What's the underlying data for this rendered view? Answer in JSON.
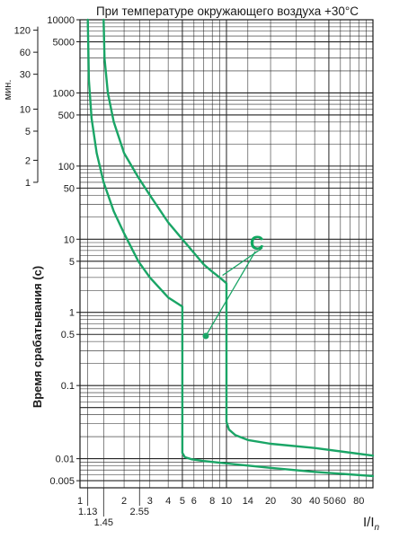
{
  "chart_data": {
    "type": "line",
    "title": "При температуре окружающего воздуха +30°C",
    "ylabel": "Время срабатывания (с)",
    "y2label": "мин.",
    "xlabel": "I/I",
    "xlabel_sub": "n",
    "x_scale": "log",
    "y_scale": "log",
    "xlim": [
      1,
      100
    ],
    "ylim": [
      0.004,
      10000
    ],
    "grid": true,
    "x_ticks": [
      {
        "value": 1,
        "label": "1",
        "row": 0
      },
      {
        "value": 1.13,
        "label": "1.13",
        "row": 1
      },
      {
        "value": 1.45,
        "label": "1.45",
        "row": 2
      },
      {
        "value": 2,
        "label": "2",
        "row": 0
      },
      {
        "value": 2.55,
        "label": "2.55",
        "row": 1
      },
      {
        "value": 3,
        "label": "3",
        "row": 0
      },
      {
        "value": 4,
        "label": "4",
        "row": 0
      },
      {
        "value": 5,
        "label": "5",
        "row": 0
      },
      {
        "value": 6,
        "label": "6",
        "row": 0
      },
      {
        "value": 8,
        "label": "8",
        "row": 0
      },
      {
        "value": 10,
        "label": "10",
        "row": 0
      },
      {
        "value": 14,
        "label": "14",
        "row": 0
      },
      {
        "value": 20,
        "label": "20",
        "row": 0
      },
      {
        "value": 30,
        "label": "30",
        "row": 0
      },
      {
        "value": 40,
        "label": "40",
        "row": 0
      },
      {
        "value": 50,
        "label": "50",
        "row": 0
      },
      {
        "value": 60,
        "label": "60",
        "row": 0
      },
      {
        "value": 80,
        "label": "80",
        "row": 0
      }
    ],
    "y_ticks": [
      {
        "value": 10000,
        "label": "10000"
      },
      {
        "value": 5000,
        "label": "5000"
      },
      {
        "value": 1000,
        "label": "1000"
      },
      {
        "value": 500,
        "label": "500"
      },
      {
        "value": 100,
        "label": "100"
      },
      {
        "value": 50,
        "label": "50"
      },
      {
        "value": 10,
        "label": "10"
      },
      {
        "value": 5,
        "label": "5"
      },
      {
        "value": 1,
        "label": "1"
      },
      {
        "value": 0.5,
        "label": "0.5"
      },
      {
        "value": 0.1,
        "label": "0.1"
      },
      {
        "value": 0.01,
        "label": "0.01"
      },
      {
        "value": 0.005,
        "label": "0.005"
      }
    ],
    "y_minute_ticks": [
      {
        "minutes": 120,
        "label": "120"
      },
      {
        "minutes": 60,
        "label": "60"
      },
      {
        "minutes": 30,
        "label": "30"
      },
      {
        "minutes": 10,
        "label": "10"
      },
      {
        "minutes": 5,
        "label": "5"
      },
      {
        "minutes": 2,
        "label": "2"
      },
      {
        "minutes": 1,
        "label": "1"
      }
    ],
    "curve_label": "C",
    "series": [
      {
        "name": "",
        "color": "#1aa566",
        "x": [
          1.13,
          1.15,
          1.2,
          1.3,
          1.45,
          1.7,
          2.0,
          2.5,
          3.0,
          4.0,
          5.0,
          5.0,
          5.0,
          5.2,
          5.8,
          7,
          9,
          12,
          20,
          40,
          100
        ],
        "y": [
          10000,
          1500,
          450,
          150,
          60,
          24,
          12,
          5.0,
          3.0,
          1.6,
          1.2,
          0.3,
          0.012,
          0.0105,
          0.0098,
          0.0093,
          0.0088,
          0.0083,
          0.0075,
          0.0066,
          0.0058
        ]
      },
      {
        "name": "",
        "color": "#1aa566",
        "x": [
          1.45,
          1.47,
          1.55,
          1.7,
          2.0,
          2.5,
          3.0,
          4.0,
          5.0,
          6.0,
          7.0,
          8.0,
          9.0,
          10.0,
          10.0,
          10.0,
          10.4,
          11.5,
          14,
          20,
          40,
          100
        ],
        "y": [
          10000,
          3000,
          1000,
          400,
          150,
          70,
          40,
          17,
          10,
          6.5,
          4.5,
          3.6,
          3.0,
          2.5,
          0.3,
          0.032,
          0.025,
          0.021,
          0.018,
          0.016,
          0.014,
          0.011
        ]
      }
    ]
  }
}
